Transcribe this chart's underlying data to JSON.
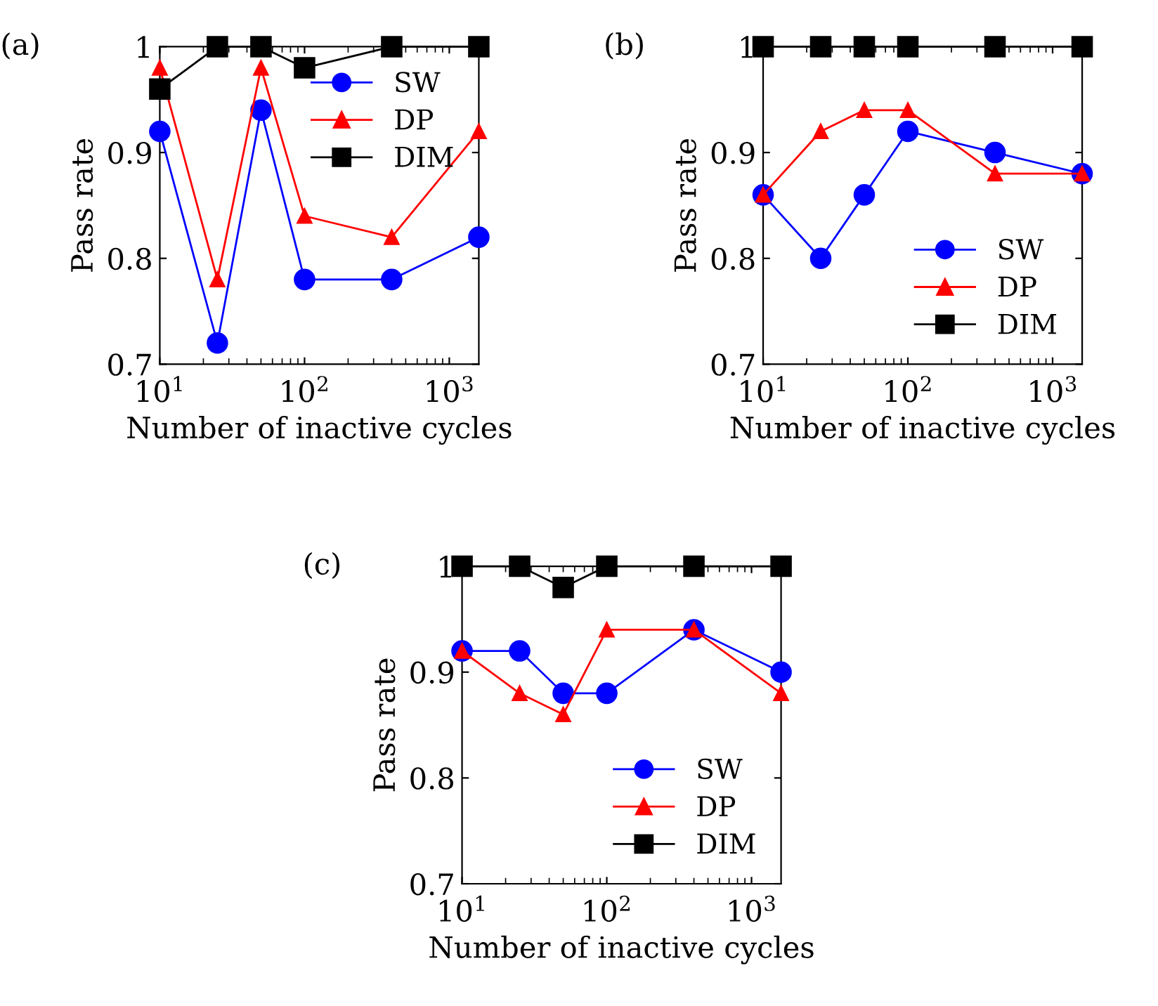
{
  "chart_data": [
    {
      "type": "line",
      "title": "(a)",
      "xlabel": "Number of inactive cycles",
      "ylabel": "Pass rate",
      "log": "x",
      "x": [
        10,
        25,
        50,
        100,
        400,
        1600
      ],
      "xlim": [
        10,
        1600
      ],
      "xticks": [
        {
          "value": 10,
          "label": "10$^{1}$"
        },
        {
          "value": 100,
          "label": "10$^{2}$"
        },
        {
          "value": 1000,
          "label": "10$^{3}$"
        }
      ],
      "ylim": [
        0.7,
        1.0
      ],
      "yticks": [
        0.7,
        0.8,
        0.9,
        1
      ],
      "grid": false,
      "legend": "top right",
      "series": [
        {
          "name": "SW",
          "color": "#0000ff",
          "marker": "circle",
          "values": [
            0.92,
            0.72,
            0.94,
            0.78,
            0.78,
            0.82
          ]
        },
        {
          "name": "DP",
          "color": "#ff0000",
          "marker": "triangle",
          "values": [
            0.98,
            0.78,
            0.98,
            0.84,
            0.82,
            0.92
          ]
        },
        {
          "name": "DIM",
          "color": "#000000",
          "marker": "square",
          "values": [
            0.96,
            1.0,
            1.0,
            0.98,
            1.0,
            1.0
          ]
        }
      ]
    },
    {
      "type": "line",
      "title": "(b)",
      "xlabel": "Number of inactive cycles",
      "ylabel": "Pass rate",
      "log": "x",
      "x": [
        10,
        25,
        50,
        100,
        400,
        1600
      ],
      "xlim": [
        10,
        1600
      ],
      "xticks": [
        {
          "value": 10,
          "label": "10$^{1}$"
        },
        {
          "value": 100,
          "label": "10$^{2}$"
        },
        {
          "value": 1000,
          "label": "10$^{3}$"
        }
      ],
      "ylim": [
        0.7,
        1.0
      ],
      "yticks": [
        0.7,
        0.8,
        0.9,
        1
      ],
      "grid": false,
      "legend": "bottom right",
      "series": [
        {
          "name": "SW",
          "color": "#0000ff",
          "marker": "circle",
          "values": [
            0.86,
            0.8,
            0.86,
            0.92,
            0.9,
            0.88
          ]
        },
        {
          "name": "DP",
          "color": "#ff0000",
          "marker": "triangle",
          "values": [
            0.86,
            0.92,
            0.94,
            0.94,
            0.88,
            0.88
          ]
        },
        {
          "name": "DIM",
          "color": "#000000",
          "marker": "square",
          "values": [
            1.0,
            1.0,
            1.0,
            1.0,
            1.0,
            1.0
          ]
        }
      ]
    },
    {
      "type": "line",
      "title": "(c)",
      "xlabel": "Number of inactive cycles",
      "ylabel": "Pass rate",
      "log": "x",
      "x": [
        10,
        25,
        50,
        100,
        400,
        1600
      ],
      "xlim": [
        10,
        1600
      ],
      "xticks": [
        {
          "value": 10,
          "label": "10$^{1}$"
        },
        {
          "value": 100,
          "label": "10$^{2}$"
        },
        {
          "value": 1000,
          "label": "10$^{3}$"
        }
      ],
      "ylim": [
        0.7,
        1.0
      ],
      "yticks": [
        0.7,
        0.8,
        0.9,
        1
      ],
      "grid": false,
      "legend": "bottom right",
      "series": [
        {
          "name": "SW",
          "color": "#0000ff",
          "marker": "circle",
          "values": [
            0.92,
            0.92,
            0.88,
            0.88,
            0.94,
            0.9
          ]
        },
        {
          "name": "DP",
          "color": "#ff0000",
          "marker": "triangle",
          "values": [
            0.92,
            0.88,
            0.86,
            0.94,
            0.94,
            0.88
          ]
        },
        {
          "name": "DIM",
          "color": "#000000",
          "marker": "square",
          "values": [
            1.0,
            1.0,
            0.98,
            1.0,
            1.0,
            1.0
          ]
        }
      ]
    }
  ]
}
